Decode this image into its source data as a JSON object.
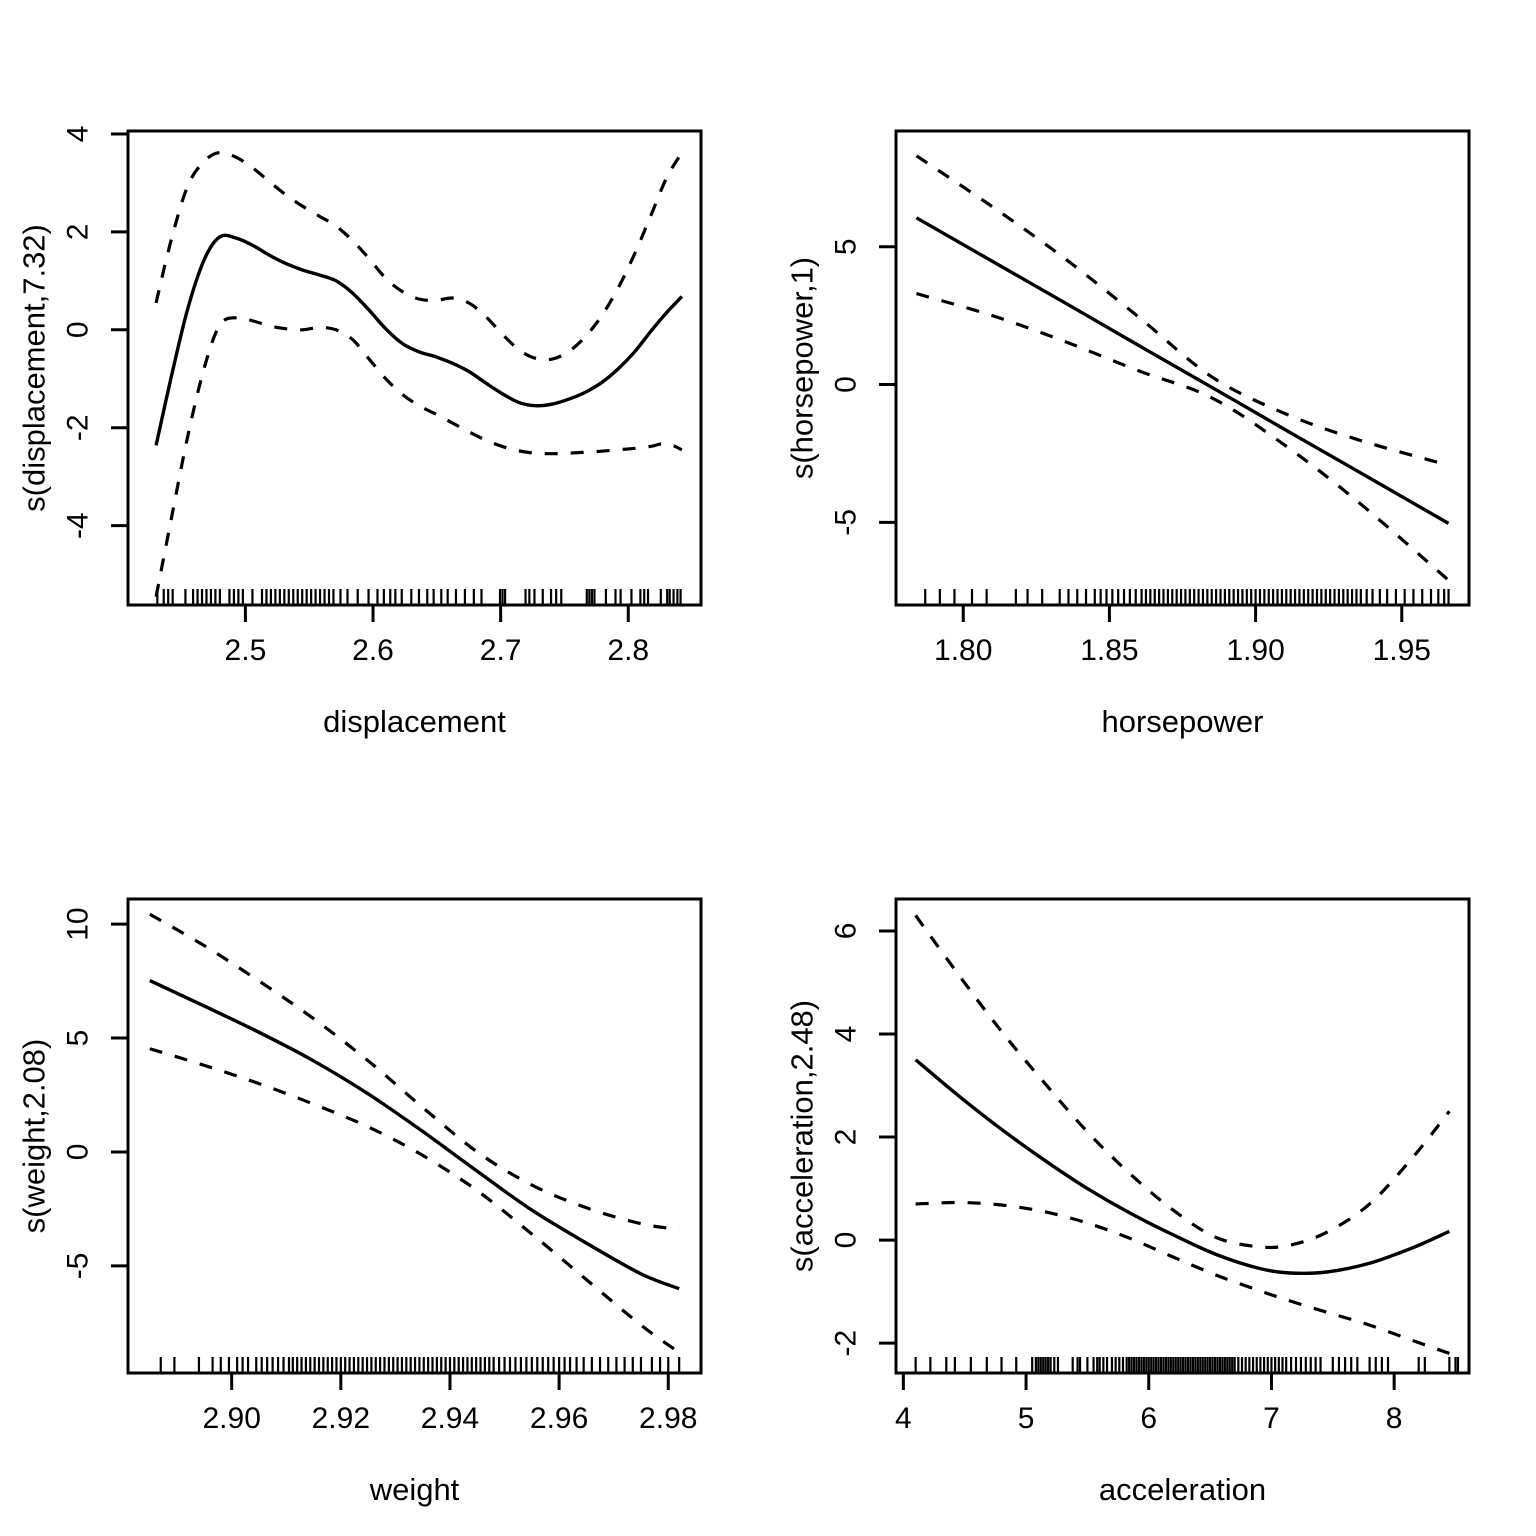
{
  "page": {
    "background": "#ffffff",
    "stroke_color": "#000000"
  },
  "chart_data": [
    {
      "id": "displacement",
      "type": "line",
      "title": "",
      "xlabel": "displacement",
      "ylabel": "s(displacement,7.32)",
      "xlim": [
        2.408,
        2.857
      ],
      "ylim": [
        -5.62,
        4.06
      ],
      "grid": false,
      "legend": "none",
      "xticks": [
        2.5,
        2.6,
        2.7,
        2.8
      ],
      "xtick_labels": [
        "2.5",
        "2.6",
        "2.7",
        "2.8"
      ],
      "yticks": [
        -4,
        -2,
        0,
        2,
        4
      ],
      "ytick_labels": [
        "-4",
        "-2",
        "0",
        "2",
        "4"
      ],
      "series": [
        {
          "name": "fit",
          "style": "solid",
          "x": [
            2.43,
            2.442,
            2.455,
            2.468,
            2.48,
            2.493,
            2.506,
            2.519,
            2.532,
            2.545,
            2.558,
            2.571,
            2.584,
            2.597,
            2.61,
            2.623,
            2.636,
            2.649,
            2.662,
            2.675,
            2.688,
            2.701,
            2.714,
            2.727,
            2.74,
            2.753,
            2.766,
            2.779,
            2.792,
            2.805,
            2.818,
            2.83,
            2.842
          ],
          "y": [
            -2.36,
            -0.95,
            0.45,
            1.45,
            1.9,
            1.87,
            1.72,
            1.52,
            1.35,
            1.22,
            1.12,
            1.0,
            0.75,
            0.4,
            0.02,
            -0.28,
            -0.45,
            -0.55,
            -0.68,
            -0.85,
            -1.08,
            -1.3,
            -1.48,
            -1.55,
            -1.52,
            -1.42,
            -1.28,
            -1.08,
            -0.8,
            -0.45,
            -0.02,
            0.35,
            0.68
          ]
        },
        {
          "name": "upper-ci",
          "style": "dashed",
          "x": [
            2.43,
            2.442,
            2.455,
            2.468,
            2.48,
            2.493,
            2.506,
            2.519,
            2.532,
            2.545,
            2.558,
            2.571,
            2.584,
            2.597,
            2.61,
            2.623,
            2.636,
            2.649,
            2.662,
            2.675,
            2.688,
            2.701,
            2.714,
            2.727,
            2.74,
            2.753,
            2.766,
            2.779,
            2.792,
            2.805,
            2.818,
            2.83,
            2.842
          ],
          "y": [
            0.55,
            1.85,
            2.95,
            3.45,
            3.62,
            3.52,
            3.3,
            3.02,
            2.75,
            2.52,
            2.32,
            2.12,
            1.82,
            1.45,
            1.05,
            0.78,
            0.63,
            0.6,
            0.65,
            0.55,
            0.28,
            -0.08,
            -0.4,
            -0.58,
            -0.6,
            -0.45,
            -0.15,
            0.28,
            0.85,
            1.55,
            2.35,
            3.1,
            3.62
          ]
        },
        {
          "name": "lower-ci",
          "style": "dashed",
          "x": [
            2.43,
            2.442,
            2.455,
            2.468,
            2.48,
            2.493,
            2.506,
            2.519,
            2.532,
            2.545,
            2.558,
            2.571,
            2.584,
            2.597,
            2.61,
            2.623,
            2.636,
            2.649,
            2.662,
            2.675,
            2.688,
            2.701,
            2.714,
            2.727,
            2.74,
            2.753,
            2.766,
            2.779,
            2.792,
            2.805,
            2.818,
            2.83,
            2.842
          ],
          "y": [
            -5.45,
            -3.85,
            -2.15,
            -0.75,
            0.1,
            0.25,
            0.18,
            0.08,
            0.02,
            0.0,
            0.05,
            0.0,
            -0.2,
            -0.6,
            -1.0,
            -1.32,
            -1.55,
            -1.72,
            -1.9,
            -2.08,
            -2.25,
            -2.38,
            -2.47,
            -2.52,
            -2.53,
            -2.52,
            -2.5,
            -2.48,
            -2.45,
            -2.42,
            -2.38,
            -2.32,
            -2.45
          ]
        }
      ],
      "rug": [
        2.431,
        2.436,
        2.4395,
        2.443,
        2.453,
        2.459,
        2.4625,
        2.466,
        2.4695,
        2.473,
        2.4765,
        2.48,
        2.4875,
        2.491,
        2.4945,
        2.498,
        2.5055,
        2.513,
        2.5165,
        2.52,
        2.5235,
        2.527,
        2.5305,
        2.534,
        2.5375,
        2.541,
        2.5445,
        2.548,
        2.5515,
        2.555,
        2.5585,
        2.562,
        2.5655,
        2.569,
        2.5745,
        2.58,
        2.588,
        2.5965,
        2.6035,
        2.6085,
        2.6135,
        2.6175,
        2.6225,
        2.63,
        2.636,
        2.6425,
        2.6475,
        2.6535,
        2.6585,
        2.665,
        2.672,
        2.679,
        2.685,
        2.6995,
        2.7015,
        2.7035,
        2.7195,
        2.7225,
        2.7265,
        2.733,
        2.7395,
        2.7435,
        2.7475,
        2.7675,
        2.7695,
        2.7715,
        2.7735,
        2.7825,
        2.79,
        2.794,
        2.8025,
        2.8095,
        2.8125,
        2.8155,
        2.8255,
        2.8305,
        2.8325,
        2.8355,
        2.8385,
        2.841
      ]
    },
    {
      "id": "horsepower",
      "type": "line",
      "title": "",
      "xlabel": "horsepower",
      "ylabel": "s(horsepower,1)",
      "xlim": [
        1.777,
        1.973
      ],
      "ylim": [
        -8.0,
        9.2
      ],
      "grid": false,
      "legend": "none",
      "xticks": [
        1.8,
        1.85,
        1.9,
        1.95
      ],
      "xtick_labels": [
        "1.80",
        "1.85",
        "1.90",
        "1.95"
      ],
      "yticks": [
        -5,
        0,
        5
      ],
      "ytick_labels": [
        "-5",
        "0",
        "5"
      ],
      "series": [
        {
          "name": "fit",
          "style": "solid",
          "x": [
            1.784,
            1.81,
            1.835,
            1.86,
            1.885,
            1.91,
            1.935,
            1.966
          ],
          "y": [
            6.05,
            4.47,
            2.95,
            1.42,
            -0.1,
            -1.63,
            -3.15,
            -5.04
          ]
        },
        {
          "name": "upper-ci",
          "style": "dashed",
          "x": [
            1.784,
            1.81,
            1.835,
            1.86,
            1.885,
            1.91,
            1.935,
            1.966
          ],
          "y": [
            8.3,
            6.45,
            4.55,
            2.45,
            0.28,
            -1.05,
            -2.0,
            -2.93
          ]
        },
        {
          "name": "lower-ci",
          "style": "dashed",
          "x": [
            1.784,
            1.81,
            1.835,
            1.86,
            1.885,
            1.91,
            1.935,
            1.966
          ],
          "y": [
            3.3,
            2.5,
            1.55,
            0.5,
            -0.48,
            -2.2,
            -4.25,
            -7.1
          ]
        }
      ],
      "rug": [
        1.787,
        1.792,
        1.797,
        1.803,
        1.808,
        1.818,
        1.822,
        1.827,
        1.833,
        1.836,
        1.839,
        1.842,
        1.845,
        1.847,
        1.849,
        1.851,
        1.853,
        1.855,
        1.857,
        1.859,
        1.861,
        1.8625,
        1.864,
        1.8655,
        1.867,
        1.8685,
        1.87,
        1.8715,
        1.873,
        1.8745,
        1.876,
        1.8775,
        1.879,
        1.8805,
        1.882,
        1.8835,
        1.885,
        1.8865,
        1.888,
        1.8895,
        1.891,
        1.8925,
        1.894,
        1.8955,
        1.897,
        1.8985,
        1.9,
        1.9015,
        1.903,
        1.9045,
        1.906,
        1.9075,
        1.909,
        1.9105,
        1.912,
        1.9135,
        1.915,
        1.9165,
        1.918,
        1.9195,
        1.921,
        1.9225,
        1.924,
        1.9255,
        1.927,
        1.9285,
        1.93,
        1.9315,
        1.933,
        1.9345,
        1.936,
        1.938,
        1.94,
        1.9425,
        1.945,
        1.948,
        1.951,
        1.954,
        1.957,
        1.96,
        1.9625,
        1.9645,
        1.966
      ]
    },
    {
      "id": "weight",
      "type": "line",
      "title": "",
      "xlabel": "weight",
      "ylabel": "s(weight,2.08)",
      "xlim": [
        2.881,
        2.986
      ],
      "ylim": [
        -9.7,
        11.1
      ],
      "grid": false,
      "legend": "none",
      "xticks": [
        2.9,
        2.92,
        2.94,
        2.96,
        2.98
      ],
      "xtick_labels": [
        "2.90",
        "2.92",
        "2.94",
        "2.96",
        "2.98"
      ],
      "yticks": [
        -5,
        0,
        5,
        10
      ],
      "ytick_labels": [
        "-5",
        "0",
        "5",
        "10"
      ],
      "series": [
        {
          "name": "fit",
          "style": "solid",
          "x": [
            2.885,
            2.895,
            2.905,
            2.915,
            2.925,
            2.935,
            2.945,
            2.955,
            2.965,
            2.975,
            2.982
          ],
          "y": [
            7.52,
            6.4,
            5.25,
            4.0,
            2.55,
            0.9,
            -0.85,
            -2.55,
            -4.0,
            -5.35,
            -6.0
          ]
        },
        {
          "name": "upper-ci",
          "style": "dashed",
          "x": [
            2.885,
            2.895,
            2.905,
            2.915,
            2.925,
            2.935,
            2.945,
            2.955,
            2.965,
            2.975,
            2.982
          ],
          "y": [
            10.43,
            9.05,
            7.5,
            5.85,
            4.0,
            1.95,
            0.0,
            -1.45,
            -2.45,
            -3.15,
            -3.4
          ]
        },
        {
          "name": "lower-ci",
          "style": "dashed",
          "x": [
            2.885,
            2.895,
            2.905,
            2.915,
            2.925,
            2.935,
            2.945,
            2.955,
            2.965,
            2.975,
            2.982
          ],
          "y": [
            4.53,
            3.8,
            3.0,
            2.1,
            1.1,
            -0.15,
            -1.7,
            -3.6,
            -5.6,
            -7.6,
            -8.8
          ]
        }
      ],
      "rug": [
        2.887,
        2.8895,
        2.894,
        2.8965,
        2.898,
        2.8995,
        2.901,
        2.902,
        2.903,
        2.9045,
        2.9055,
        2.9065,
        2.9075,
        2.9085,
        2.9095,
        2.9105,
        2.9112,
        2.912,
        2.9128,
        2.9136,
        2.9144,
        2.9152,
        2.916,
        2.9168,
        2.9176,
        2.9184,
        2.9192,
        2.92,
        2.9208,
        2.9216,
        2.9224,
        2.9232,
        2.924,
        2.9248,
        2.9256,
        2.9264,
        2.9272,
        2.928,
        2.9288,
        2.9296,
        2.9304,
        2.9312,
        2.932,
        2.9328,
        2.9336,
        2.9344,
        2.9352,
        2.936,
        2.9368,
        2.9376,
        2.9384,
        2.9392,
        2.94,
        2.9408,
        2.9416,
        2.9424,
        2.9432,
        2.944,
        2.9448,
        2.9456,
        2.9464,
        2.9472,
        2.948,
        2.949,
        2.95,
        2.951,
        2.952,
        2.953,
        2.954,
        2.955,
        2.956,
        2.957,
        2.958,
        2.959,
        2.96,
        2.961,
        2.962,
        2.9632,
        2.9645,
        2.966,
        2.9675,
        2.969,
        2.9705,
        2.972,
        2.9735,
        2.975,
        2.977,
        2.9785,
        2.98,
        2.982
      ]
    },
    {
      "id": "acceleration",
      "type": "line",
      "title": "",
      "xlabel": "acceleration",
      "ylabel": "s(acceleration,2.48)",
      "xlim": [
        3.94,
        8.61
      ],
      "ylim": [
        -2.58,
        6.62
      ],
      "grid": false,
      "legend": "none",
      "xticks": [
        4,
        5,
        6,
        7,
        8
      ],
      "xtick_labels": [
        "4",
        "5",
        "6",
        "7",
        "8"
      ],
      "yticks": [
        -2,
        0,
        2,
        4,
        6
      ],
      "ytick_labels": [
        "-2",
        "0",
        "2",
        "4",
        "6"
      ],
      "series": [
        {
          "name": "fit",
          "style": "solid",
          "x": [
            4.1,
            4.45,
            4.8,
            5.15,
            5.5,
            5.85,
            6.2,
            6.55,
            6.9,
            7.15,
            7.45,
            7.8,
            8.15,
            8.45
          ],
          "y": [
            3.5,
            2.8,
            2.15,
            1.55,
            1.0,
            0.52,
            0.1,
            -0.28,
            -0.55,
            -0.64,
            -0.62,
            -0.45,
            -0.15,
            0.17
          ]
        },
        {
          "name": "upper-ci",
          "style": "dashed",
          "x": [
            4.1,
            4.45,
            4.8,
            5.15,
            5.5,
            5.85,
            6.2,
            6.55,
            6.9,
            7.15,
            7.45,
            7.8,
            8.15,
            8.45
          ],
          "y": [
            6.3,
            5.15,
            4.05,
            3.05,
            2.1,
            1.28,
            0.58,
            0.05,
            -0.13,
            -0.1,
            0.15,
            0.7,
            1.6,
            2.5
          ]
        },
        {
          "name": "lower-ci",
          "style": "dashed",
          "x": [
            4.1,
            4.45,
            4.8,
            5.15,
            5.5,
            5.85,
            6.2,
            6.55,
            6.9,
            7.15,
            7.45,
            7.8,
            8.15,
            8.45
          ],
          "y": [
            0.7,
            0.73,
            0.68,
            0.55,
            0.33,
            0.03,
            -0.33,
            -0.68,
            -0.98,
            -1.18,
            -1.4,
            -1.65,
            -1.95,
            -2.2
          ]
        }
      ],
      "rug": [
        4.1,
        4.22,
        4.35,
        4.42,
        4.55,
        4.68,
        4.8,
        4.92,
        5.05,
        5.08,
        5.1,
        5.12,
        5.14,
        5.16,
        5.18,
        5.2,
        5.23,
        5.26,
        5.38,
        5.42,
        5.44,
        5.5,
        5.55,
        5.58,
        5.6,
        5.63,
        5.66,
        5.7,
        5.73,
        5.76,
        5.79,
        5.82,
        5.84,
        5.86,
        5.88,
        5.9,
        5.92,
        5.94,
        5.96,
        5.98,
        6.0,
        6.02,
        6.04,
        6.06,
        6.08,
        6.1,
        6.12,
        6.14,
        6.16,
        6.18,
        6.2,
        6.22,
        6.24,
        6.26,
        6.28,
        6.3,
        6.32,
        6.34,
        6.36,
        6.38,
        6.4,
        6.42,
        6.44,
        6.46,
        6.48,
        6.5,
        6.52,
        6.54,
        6.56,
        6.58,
        6.6,
        6.62,
        6.64,
        6.66,
        6.68,
        6.7,
        6.73,
        6.76,
        6.79,
        6.82,
        6.85,
        6.88,
        6.91,
        6.94,
        6.97,
        7.0,
        7.03,
        7.06,
        7.09,
        7.12,
        7.16,
        7.2,
        7.24,
        7.28,
        7.32,
        7.36,
        7.4,
        7.5,
        7.55,
        7.6,
        7.65,
        7.7,
        7.8,
        7.85,
        7.9,
        7.95,
        8.2,
        8.25,
        8.45,
        8.5,
        8.52
      ]
    }
  ]
}
